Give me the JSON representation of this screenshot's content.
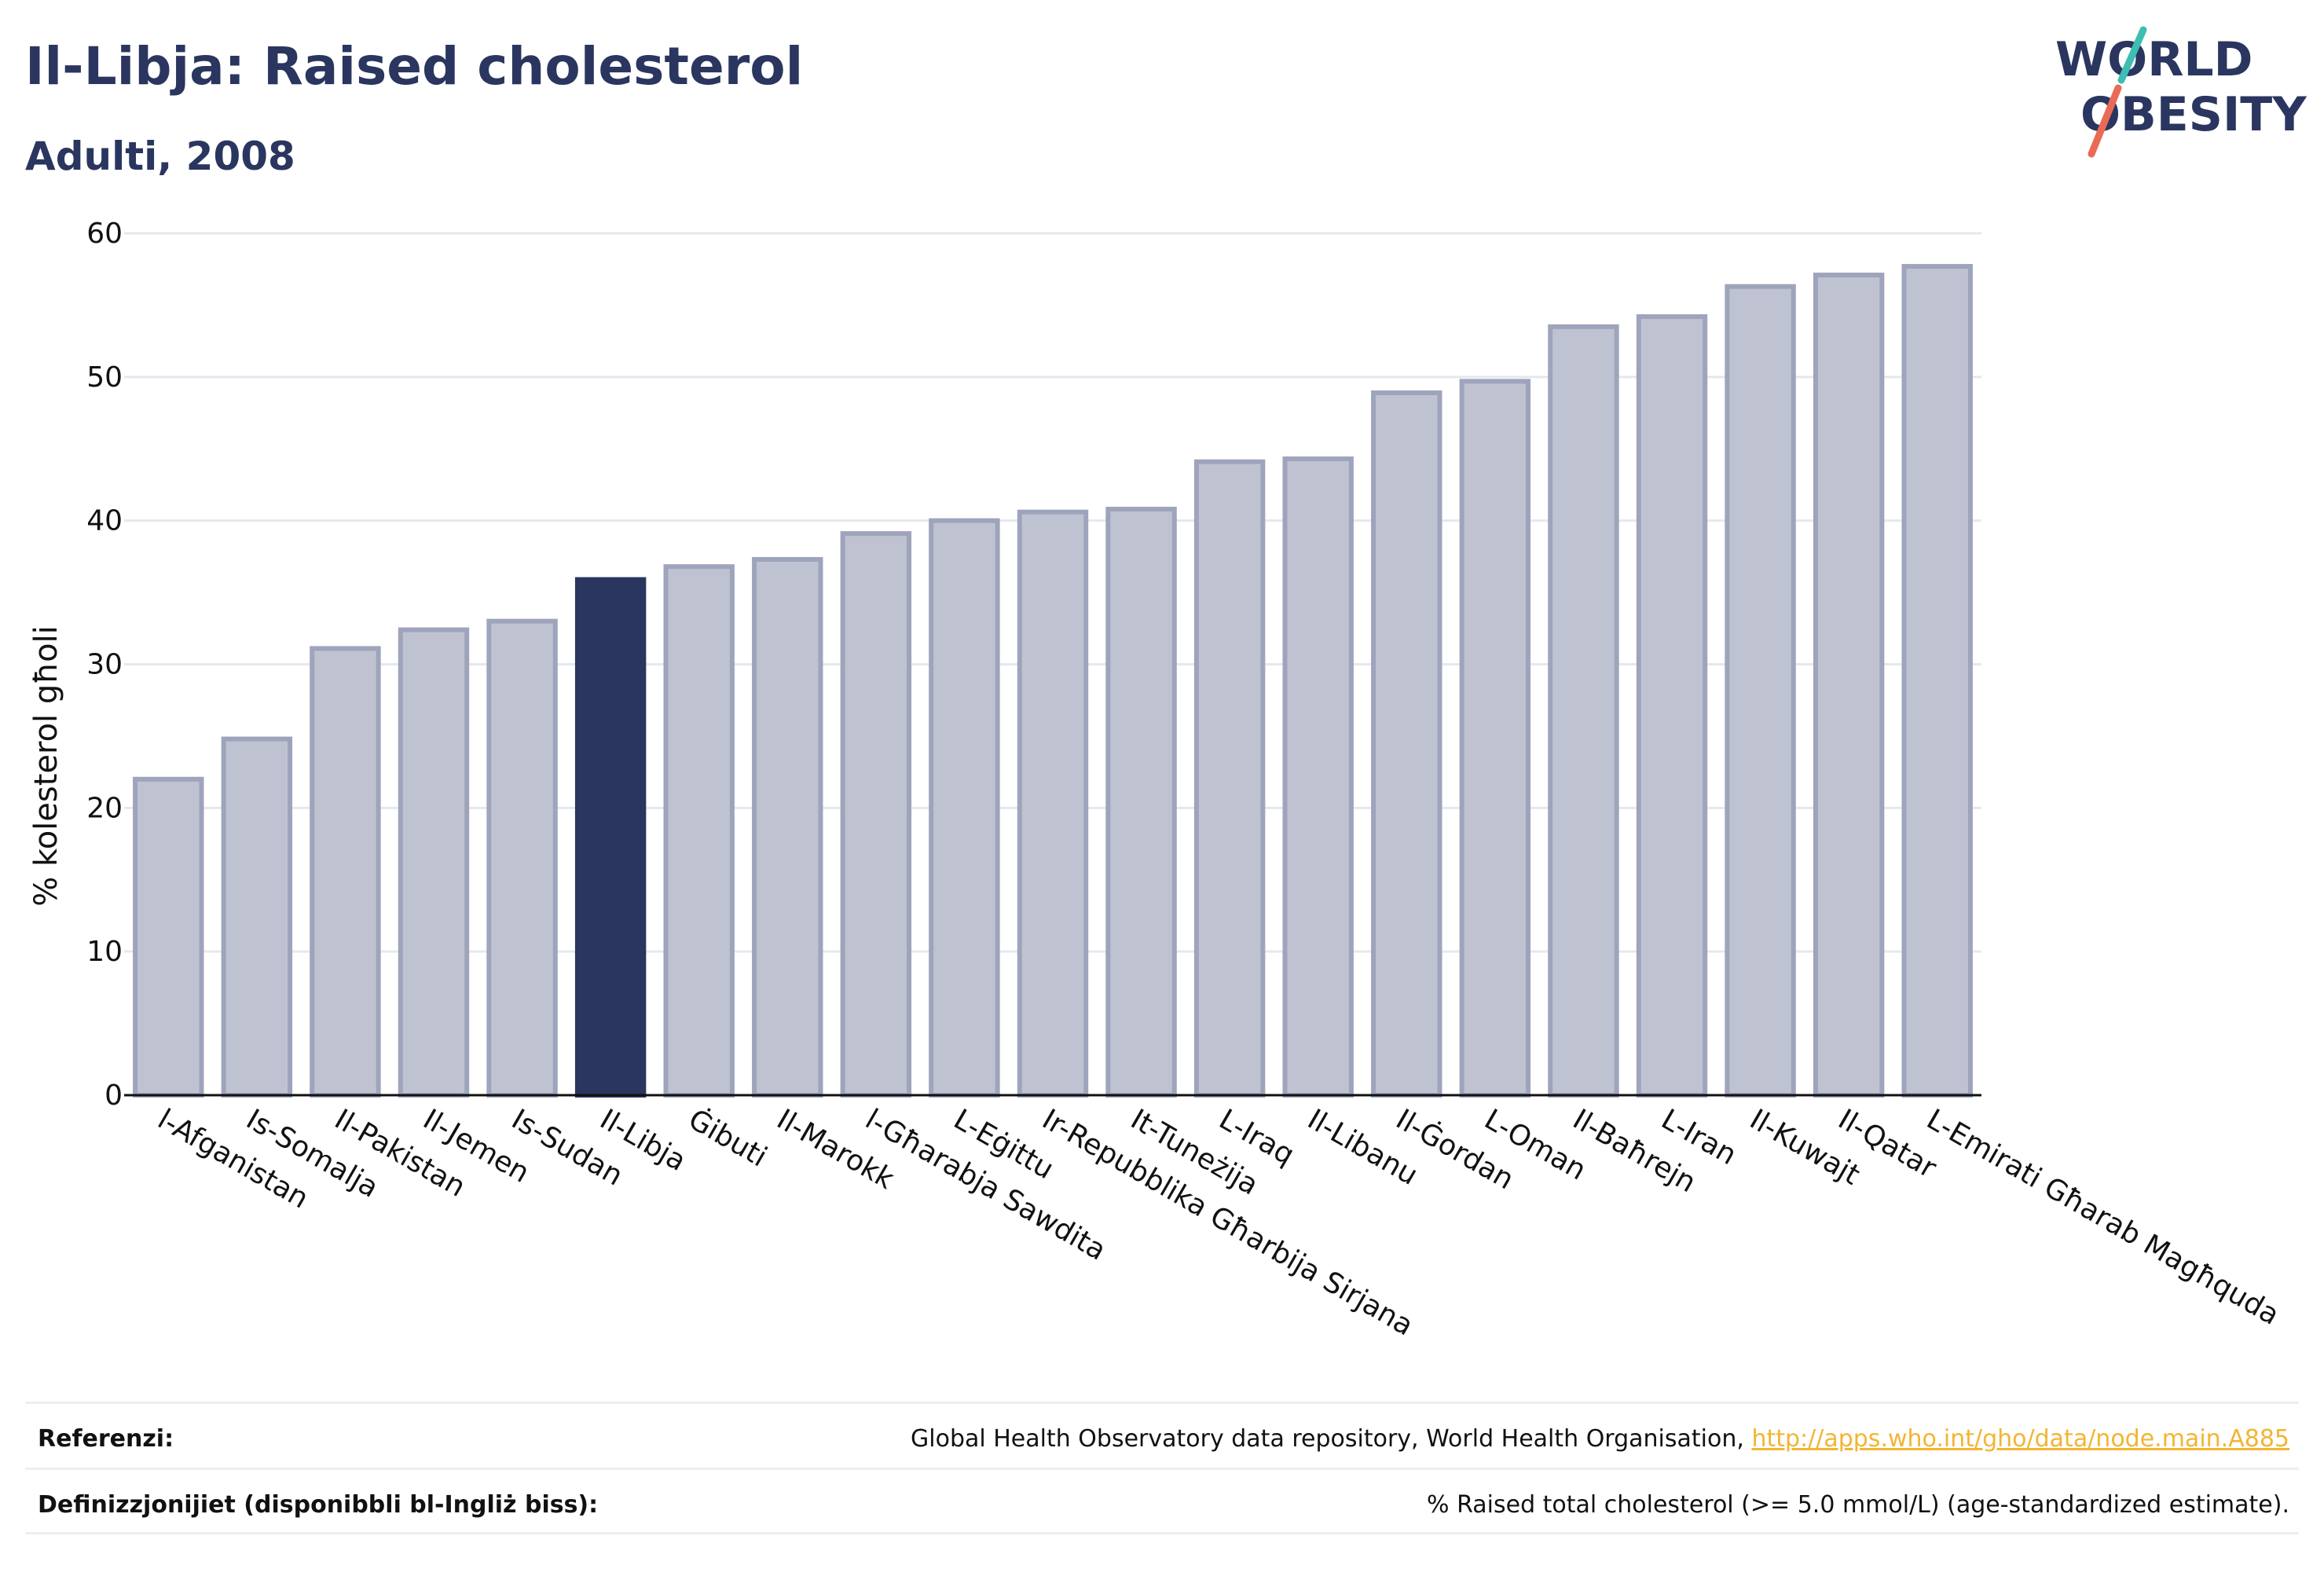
{
  "header": {
    "title": "Il-Libja: Raised cholesterol",
    "subtitle": "Adulti, 2008"
  },
  "logo": {
    "line1": "WORLD",
    "line2": "OBESITY",
    "colors": {
      "text": "#2a365f",
      "slash_top": "#3ebdb2",
      "slash_bottom": "#ea6b55"
    }
  },
  "chart_data": {
    "type": "bar",
    "ylabel": "% kolesterol għoli",
    "xlabel": "",
    "ylim": [
      0,
      60
    ],
    "yticks": [
      0,
      10,
      20,
      30,
      40,
      50,
      60
    ],
    "grid": true,
    "highlight": "Il-Libja",
    "colors": {
      "bar": "#bfc3d1",
      "bar_border": "#9ea4bb",
      "highlight": "#2a365f",
      "grid": "#e6e8ef"
    },
    "categories": [
      "l-Afganistan",
      "Is-Somalja",
      "Il-Pakistan",
      "Il-Jemen",
      "Is-Sudan",
      "Il-Libja",
      "Ġibuti",
      "Il-Marokk",
      "l-Għarabja Sawdita",
      "L-Eġittu",
      "Ir-Repubblika Għarbija Sirjana",
      "It-Tuneżija",
      "L-Iraq",
      "Il-Libanu",
      "Il-Ġordan",
      "L-Oman",
      "Il-Baħrejn",
      "L-Iran",
      "Il-Kuwajt",
      "Il-Qatar",
      "L-Emirati Għarab Magħquda"
    ],
    "values": [
      22.0,
      24.8,
      31.1,
      32.4,
      33.0,
      35.9,
      36.8,
      37.3,
      39.1,
      40.0,
      40.6,
      40.8,
      44.1,
      44.3,
      48.9,
      49.7,
      53.5,
      54.2,
      56.3,
      57.1,
      57.7
    ]
  },
  "footer": {
    "references_label": "Referenzi:",
    "references_text": "Global Health Observatory data repository, World Health Organisation, ",
    "references_link": "http://apps.who.int/gho/data/node.main.A885",
    "definitions_label": "Definizzjonijiet (disponibbli bl-Ingliż biss):",
    "definitions_text": "% Raised total cholesterol (>= 5.0 mmol/L) (age-standardized estimate)."
  }
}
